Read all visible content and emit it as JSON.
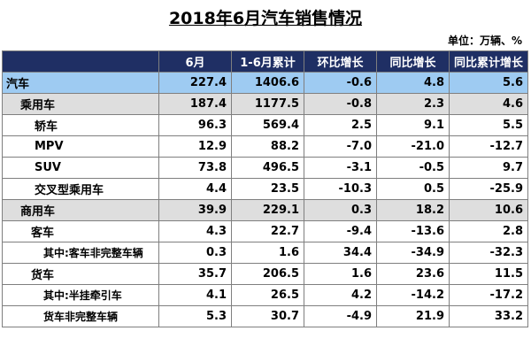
{
  "title": "2018年6月汽车销售情况",
  "unit": "单位：万辆、%",
  "columns": [
    "",
    "6月",
    "1-6月累计",
    "环比增长",
    "同比增长",
    "同比累计增长"
  ],
  "rows": [
    {
      "label": "汽车",
      "values": [
        "227.4",
        "1406.6",
        "-0.6",
        "4.8",
        "5.6"
      ]
    },
    {
      "label": "乘用车",
      "values": [
        "187.4",
        "1177.5",
        "-0.8",
        "2.3",
        "4.6"
      ]
    },
    {
      "label": "轿车",
      "values": [
        "96.3",
        "569.4",
        "2.5",
        "9.1",
        "5.5"
      ]
    },
    {
      "label": "MPV",
      "values": [
        "12.9",
        "88.2",
        "-7.0",
        "-21.0",
        "-12.7"
      ]
    },
    {
      "label": "SUV",
      "values": [
        "73.8",
        "496.5",
        "-3.1",
        "-0.5",
        "9.7"
      ]
    },
    {
      "label": "交叉型乘用车",
      "values": [
        "4.4",
        "23.5",
        "-10.3",
        "0.5",
        "-25.9"
      ]
    },
    {
      "label": "商用车",
      "values": [
        "39.9",
        "229.1",
        "0.3",
        "18.2",
        "10.6"
      ]
    },
    {
      "label": "客车",
      "values": [
        "4.3",
        "22.7",
        "-9.4",
        "-13.6",
        "2.8"
      ]
    },
    {
      "label": "其中:客车非完整车辆",
      "values": [
        "0.3",
        "1.6",
        "34.4",
        "-34.9",
        "-32.3"
      ]
    },
    {
      "label": "货车",
      "values": [
        "35.7",
        "206.5",
        "1.6",
        "23.6",
        "11.5"
      ]
    },
    {
      "label": "其中:半挂牵引车",
      "values": [
        "4.1",
        "26.5",
        "4.2",
        "-14.2",
        "-17.2"
      ]
    },
    {
      "label": "货车非完整车辆",
      "values": [
        "5.3",
        "30.7",
        "-4.9",
        "21.9",
        "33.2"
      ]
    }
  ],
  "colors": {
    "header_bg": "#1f2f64",
    "auto_row_bg": "#9ecbf2",
    "category_row_bg": "#dedede"
  }
}
